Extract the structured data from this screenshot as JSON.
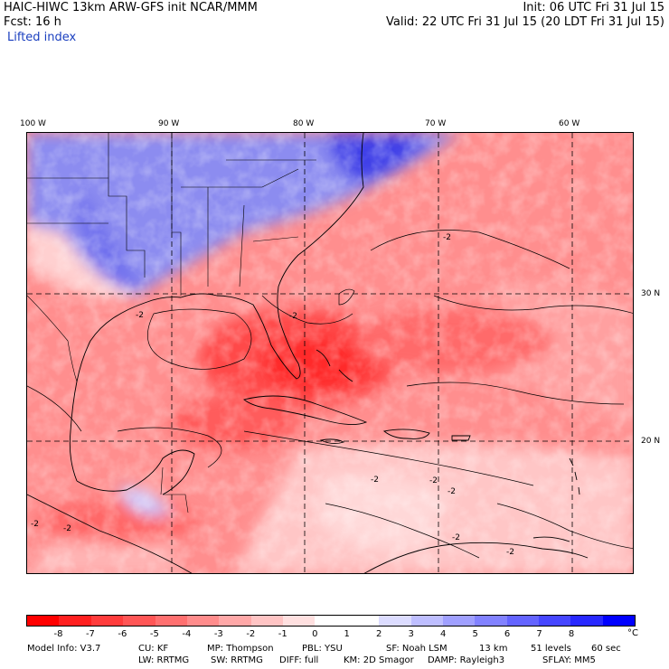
{
  "header": {
    "left_line1": "HAIC-HIWC 13km ARW-GFS init    NCAR/MMM",
    "left_line2": "Fcst:    16 h",
    "field_name": "Lifted index",
    "right_line1": "Init: 06 UTC Fri 31 Jul 15",
    "right_line2": "Valid: 22 UTC Fri 31 Jul 15 (20 LDT Fri 31 Jul 15)"
  },
  "map": {
    "lon_labels": [
      "100 W",
      "90 W",
      "80 W",
      "70 W",
      "60 W"
    ],
    "lat_labels": [
      "30 N",
      "20 N"
    ],
    "contour_labels": [
      "-2",
      "-2",
      "-2",
      "-2",
      "-2",
      "-2",
      "-2",
      "-2",
      "-2",
      "-2"
    ]
  },
  "colorbar": {
    "colors": [
      "#ff0000",
      "#ff2020",
      "#ff3c3c",
      "#ff5656",
      "#ff7070",
      "#ff8c8c",
      "#ffa8a8",
      "#ffc4c4",
      "#ffe0e0",
      "#ffffff",
      "#ffffff",
      "#dcdcff",
      "#bebeff",
      "#a0a0ff",
      "#8282ff",
      "#6464ff",
      "#4646ff",
      "#2828ff",
      "#0000ff"
    ],
    "tick_labels": [
      "-8",
      "-7",
      "-6",
      "-5",
      "-4",
      "-3",
      "-2",
      "-1",
      "0",
      "1",
      "2",
      "3",
      "4",
      "5",
      "6",
      "7",
      "8"
    ],
    "unit": "°C"
  },
  "footer": {
    "line1": [
      "Model Info: V3.7",
      "CU: KF",
      "MP: Thompson",
      "PBL: YSU",
      "SF: Noah LSM",
      "13 km",
      "51 levels",
      "60 sec"
    ],
    "line2": [
      "LW: RRTMG",
      "SW: RRTMG",
      "DIFF: full",
      "KM: 2D Smagor",
      "DAMP: Rayleigh3",
      "SFLAY: MM5"
    ]
  }
}
